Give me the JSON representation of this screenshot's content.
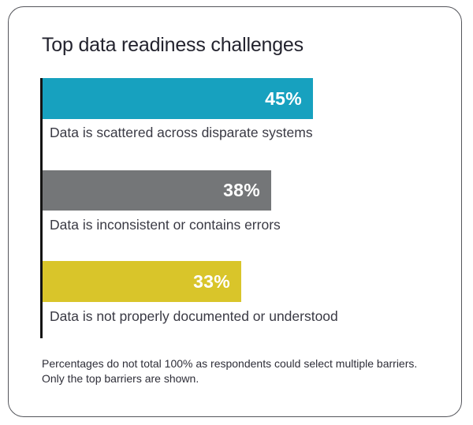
{
  "card": {
    "title": "Top data readiness challenges",
    "footnote_line1": "Percentages do not total 100% as respondents could select multiple barriers.",
    "footnote_line2": "Only the top barriers are shown."
  },
  "chart_data": {
    "type": "bar",
    "orientation": "horizontal",
    "title": "Top data readiness challenges",
    "categories": [
      "Data is scattered across disparate systems",
      "Data is inconsistent or contains errors",
      "Data is not properly documented or understood"
    ],
    "values": [
      45,
      38,
      33
    ],
    "value_labels": [
      "45%",
      "38%",
      "33%"
    ],
    "bar_colors": [
      "#17a1bf",
      "#747678",
      "#d9c52a"
    ],
    "xlim": [
      0,
      45
    ],
    "grid": false,
    "legend": false,
    "value_label_position": "inside-end",
    "footnote": "Percentages do not total 100% as respondents could select multiple barriers. Only the top barriers are shown."
  },
  "colors": {
    "teal_bar": "#17a1bf",
    "gray_bar": "#747678",
    "yellow_bar": "#d9c52a",
    "axis_line": "#141414",
    "title_text": "#23232e",
    "label_text": "#3a3a44",
    "card_border": "#54555b",
    "background": "#ffffff"
  }
}
